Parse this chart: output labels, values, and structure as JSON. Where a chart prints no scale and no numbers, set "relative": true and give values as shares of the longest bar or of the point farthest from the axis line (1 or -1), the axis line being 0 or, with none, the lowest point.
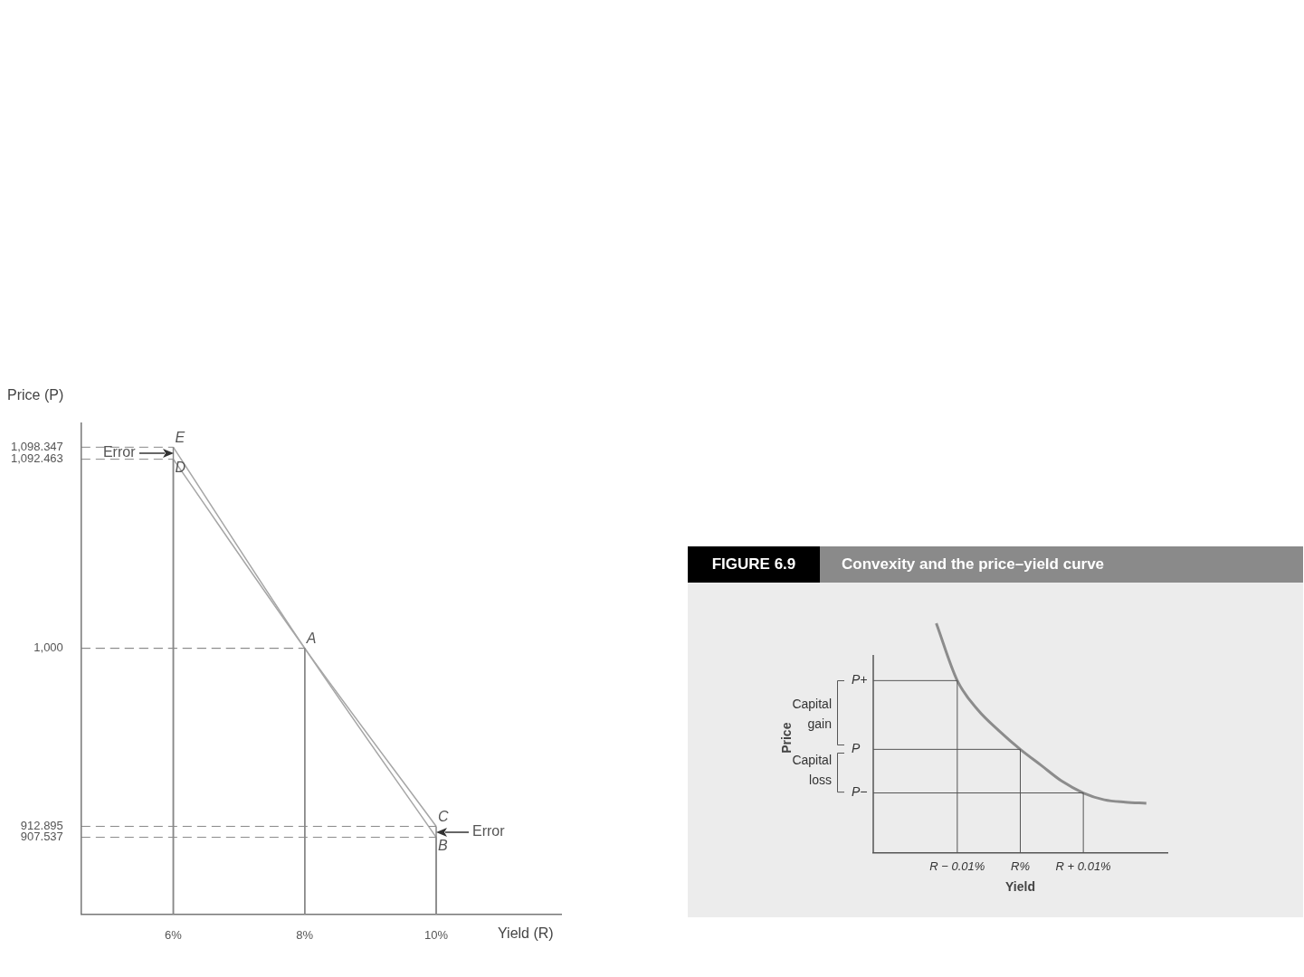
{
  "chart_data": [
    {
      "type": "line",
      "xlabel": "Yield (R)",
      "ylabel": "Price (P)",
      "xlim": [
        4.6,
        11.9
      ],
      "xticks": [
        {
          "value": 6,
          "label": "6%"
        },
        {
          "value": 8,
          "label": "8%"
        },
        {
          "value": 10,
          "label": "10%"
        }
      ],
      "ylim": [
        870,
        1110
      ],
      "grid": true,
      "yticks": [
        {
          "value": 907.537,
          "label": "907.537"
        },
        {
          "value": 912.895,
          "label": "912.895"
        },
        {
          "value": 1000,
          "label": "1,000"
        },
        {
          "value": 1092.463,
          "label": "1,092.463"
        },
        {
          "value": 1098.347,
          "label": "1,098.347"
        }
      ],
      "legend": false,
      "series": [
        {
          "x": [
            6,
            8,
            10
          ],
          "values": [
            1098.347,
            1000,
            907.537
          ],
          "color": "#a6a6a6"
        },
        {
          "x": [
            6,
            8,
            10
          ],
          "values": [
            1092.463,
            1000,
            912.895
          ],
          "color": "#a6a6a6"
        }
      ],
      "annotations": [
        {
          "text": "E",
          "x": 6,
          "y": 1098.347
        },
        {
          "text": "D",
          "x": 6,
          "y": 1092.463
        },
        {
          "text": "A",
          "x": 8,
          "y": 1000
        },
        {
          "text": "C",
          "x": 10,
          "y": 912.895
        },
        {
          "text": "B",
          "x": 10,
          "y": 907.537
        },
        {
          "text": "Error",
          "x": 6,
          "y": 1095.405
        },
        {
          "text": "Error",
          "x": 10,
          "y": 910.216
        }
      ]
    },
    {
      "type": "line",
      "title": "FIGURE 6.9",
      "subtitle": "Convexity and the price–yield curve",
      "xlabel": "Yield",
      "ylabel": "Price",
      "relative": true,
      "legend": false,
      "categories": [
        null,
        null,
        null,
        null,
        "R − 0.01%",
        null,
        null,
        "R%",
        null,
        null,
        "R + 0.01%",
        null,
        null,
        null,
        null
      ],
      "values": [
        null,
        null,
        null,
        1,
        0.75,
        0.62,
        0.53,
        0.45,
        0.38,
        0.31,
        0.26,
        0.23,
        0.22,
        0.215,
        null
      ],
      "color": "#8c8c8c",
      "ref_lines": [
        {
          "axis": "y",
          "value": 0.75,
          "label": "P+"
        },
        {
          "axis": "y",
          "value": 0.45,
          "label": "P"
        },
        {
          "axis": "y",
          "value": 0.26,
          "label": "P−"
        },
        {
          "axis": "x",
          "value": "R − 0.01%"
        },
        {
          "axis": "x",
          "value": "R%"
        },
        {
          "axis": "x",
          "value": "R + 0.01%"
        }
      ],
      "annotations": [
        "Capital gain",
        "Capital loss"
      ]
    }
  ]
}
